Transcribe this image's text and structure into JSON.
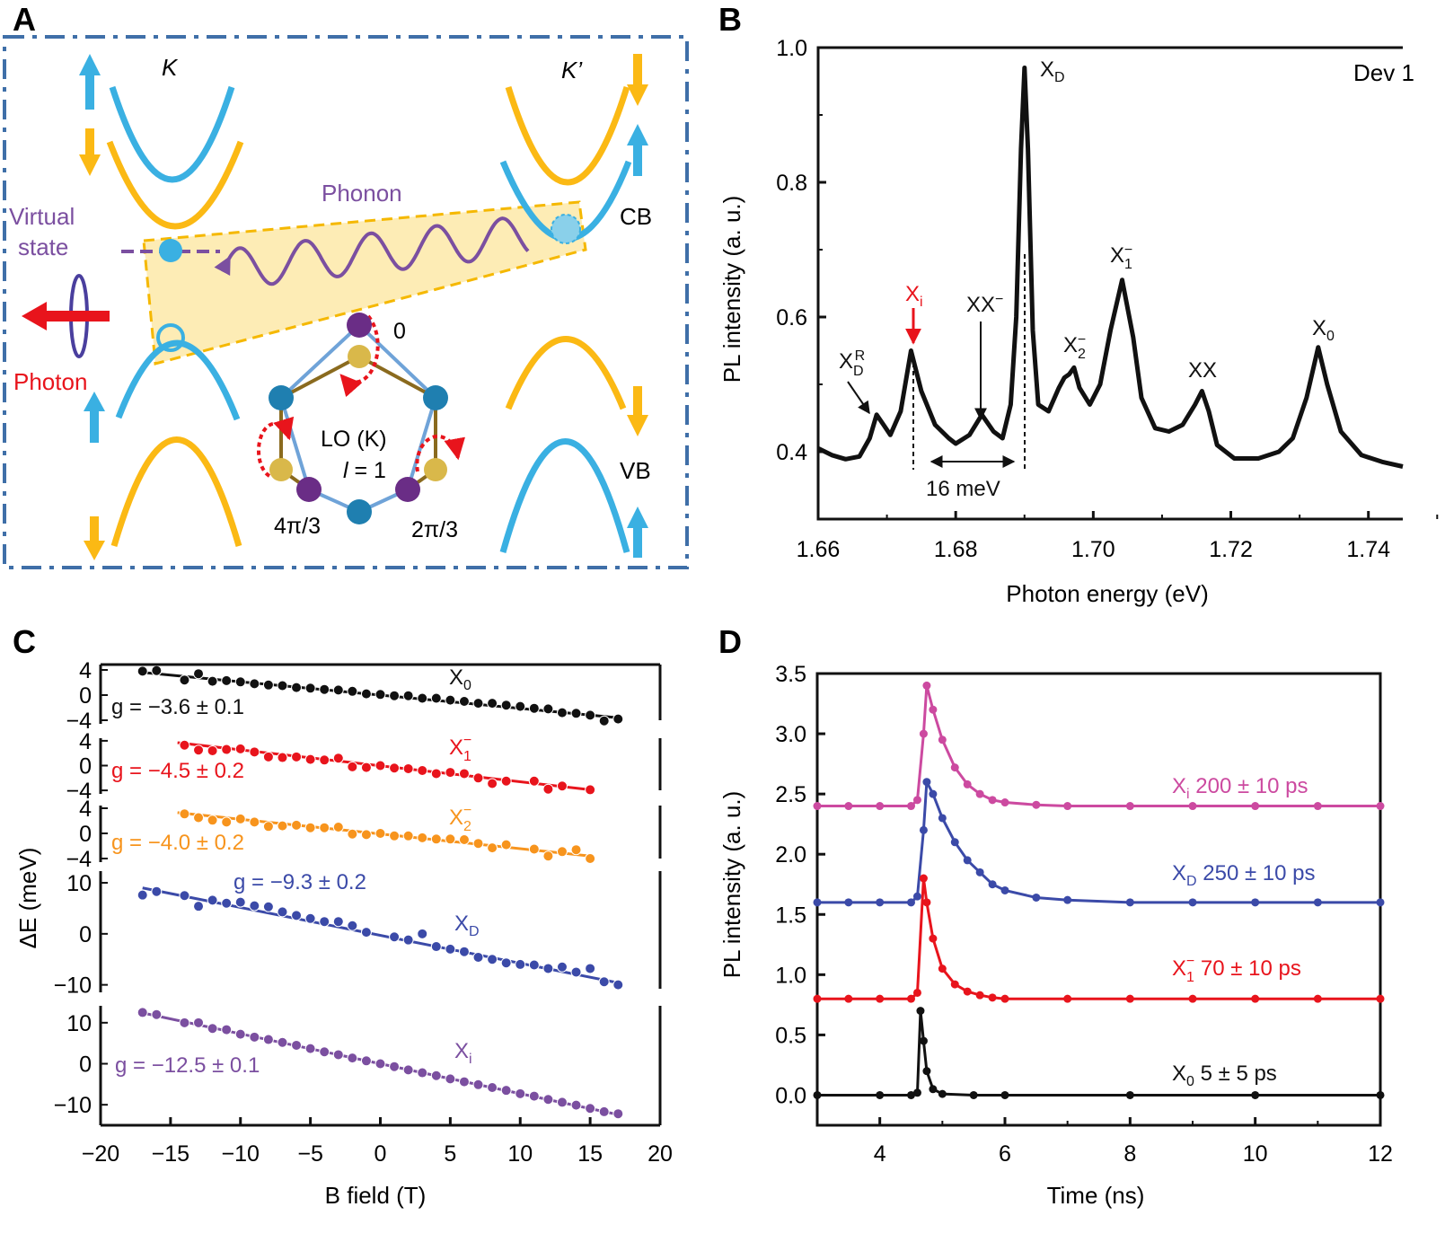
{
  "panels": {
    "a": "A",
    "b": "B",
    "c": "C",
    "d": "D"
  },
  "colors": {
    "black": "#111111",
    "red": "#e8141c",
    "orange": "#f7941d",
    "blue": "#3b4aa8",
    "purple": "#7b4fa0",
    "magenta": "#cc4aa0",
    "cyan": "#3ab0e2",
    "yellow": "#fbb914",
    "frame": "#3f6fa8",
    "gold": "#d9b84a",
    "brown": "#8a6a1e",
    "teal": "#1f7fb0",
    "violet": "#6a2d86"
  },
  "diagram": {
    "valley_k": "K",
    "valley_kprime": "K’",
    "phonon": "Phonon",
    "virtual_state_line1": "Virtual",
    "virtual_state_line2": "state",
    "cb": "CB",
    "vb": "VB",
    "photon": "Photon",
    "phase_0": "0",
    "mode_line1": "LO (K)",
    "mode_l": "l",
    "mode_line2_rest": " = 1",
    "phase_4pi3": "4π/3",
    "phase_2pi3": "2π/3"
  },
  "chart_data": [
    {
      "panel": "B",
      "type": "line",
      "xlabel": "Photon energy (eV)",
      "ylabel": "PL intensity (a. u.)",
      "xlim": [
        1.66,
        1.745
      ],
      "ylim": [
        0.3,
        1.0
      ],
      "xticks": [
        "1.66",
        "1.68",
        "1.70",
        "1.72",
        "1.74"
      ],
      "yticks": [
        "0.4",
        "0.6",
        "0.8",
        "1.0"
      ],
      "grid": false,
      "legend_text": "Dev 1",
      "points": [
        [
          1.66,
          0.405
        ],
        [
          1.662,
          0.395
        ],
        [
          1.664,
          0.389
        ],
        [
          1.666,
          0.393
        ],
        [
          1.6675,
          0.42
        ],
        [
          1.6685,
          0.455
        ],
        [
          1.6695,
          0.44
        ],
        [
          1.6705,
          0.425
        ],
        [
          1.672,
          0.46
        ],
        [
          1.6735,
          0.55
        ],
        [
          1.675,
          0.49
        ],
        [
          1.677,
          0.44
        ],
        [
          1.679,
          0.42
        ],
        [
          1.68,
          0.412
        ],
        [
          1.682,
          0.425
        ],
        [
          1.6838,
          0.455
        ],
        [
          1.6855,
          0.43
        ],
        [
          1.6868,
          0.42
        ],
        [
          1.688,
          0.47
        ],
        [
          1.6888,
          0.6
        ],
        [
          1.6895,
          0.85
        ],
        [
          1.69,
          0.97
        ],
        [
          1.6905,
          0.85
        ],
        [
          1.6912,
          0.58
        ],
        [
          1.692,
          0.47
        ],
        [
          1.6935,
          0.46
        ],
        [
          1.695,
          0.495
        ],
        [
          1.6958,
          0.51
        ],
        [
          1.6965,
          0.515
        ],
        [
          1.6972,
          0.525
        ],
        [
          1.698,
          0.495
        ],
        [
          1.6995,
          0.47
        ],
        [
          1.701,
          0.5
        ],
        [
          1.7025,
          0.58
        ],
        [
          1.7042,
          0.655
        ],
        [
          1.7058,
          0.57
        ],
        [
          1.707,
          0.48
        ],
        [
          1.709,
          0.435
        ],
        [
          1.711,
          0.43
        ],
        [
          1.713,
          0.44
        ],
        [
          1.7148,
          0.47
        ],
        [
          1.7158,
          0.49
        ],
        [
          1.7168,
          0.46
        ],
        [
          1.718,
          0.41
        ],
        [
          1.7205,
          0.39
        ],
        [
          1.724,
          0.39
        ],
        [
          1.727,
          0.4
        ],
        [
          1.729,
          0.42
        ],
        [
          1.731,
          0.48
        ],
        [
          1.7327,
          0.555
        ],
        [
          1.734,
          0.5
        ],
        [
          1.736,
          0.43
        ],
        [
          1.739,
          0.395
        ],
        [
          1.742,
          0.385
        ],
        [
          1.745,
          0.378
        ]
      ],
      "annotations": {
        "xdr": {
          "main": "X",
          "sub": "D",
          "sup": "R"
        },
        "xi": {
          "main": "X",
          "sub": "i"
        },
        "xxm": {
          "main": "XX",
          "sup": "−"
        },
        "xd": {
          "main": "X",
          "sub": "D"
        },
        "x2m": {
          "main": "X",
          "sub": "2",
          "sup": "−"
        },
        "x1m": {
          "main": "X",
          "sub": "1",
          "sup": "−"
        },
        "xx": {
          "main": "XX"
        },
        "x0": {
          "main": "X",
          "sub": "0"
        },
        "spacing": "16 meV"
      }
    },
    {
      "panel": "C",
      "type": "scatter",
      "xlabel": "B field (T)",
      "ylabel": "ΔE (meV)",
      "xlim": [
        -20,
        20
      ],
      "xticks": [
        "−20",
        "−15",
        "−10",
        "−5",
        "0",
        "5",
        "10",
        "15",
        "20"
      ],
      "grid": false,
      "series": [
        {
          "name": "X0",
          "label": {
            "main": "X",
            "sub": "0"
          },
          "g": "g = −3.6 ± 0.1",
          "color": "#111111",
          "ylim": [
            -5,
            5
          ],
          "yticks": [
            "4",
            "0",
            "−4"
          ],
          "x": [
            -17,
            -16,
            -14,
            -13,
            -12,
            -11,
            -10,
            -9,
            -8,
            -7,
            -6,
            -5,
            -4,
            -3,
            -2,
            -1,
            0,
            1,
            2,
            3,
            4,
            5,
            6,
            7,
            8,
            9,
            10,
            11,
            12,
            13,
            14,
            15,
            16,
            17
          ],
          "y": [
            3.8,
            3.9,
            2.4,
            3.4,
            2.2,
            2.3,
            2.1,
            1.8,
            1.6,
            1.5,
            1.2,
            1.1,
            0.9,
            0.8,
            0.6,
            0.2,
            0.1,
            -0.1,
            -0.1,
            -0.5,
            -0.5,
            -0.8,
            -1.0,
            -1.3,
            -1.3,
            -1.6,
            -1.8,
            -2.1,
            -2.2,
            -2.8,
            -2.9,
            -3.2,
            -4.1,
            -3.8
          ],
          "fit": [
            [
              -17,
              3.6
            ],
            [
              17,
              -3.6
            ]
          ]
        },
        {
          "name": "X1-",
          "label": {
            "main": "X",
            "sub": "1",
            "sup": "−"
          },
          "g": "g = −4.5 ± 0.2",
          "color": "#e8141c",
          "ylim": [
            -5,
            5
          ],
          "yticks": [
            "4",
            "0",
            "−4"
          ],
          "x": [
            -14,
            -13,
            -12,
            -11,
            -10,
            -9,
            -8,
            -7,
            -6,
            -5,
            -4,
            -3,
            -2,
            -1,
            0,
            1,
            2,
            3,
            4,
            5,
            6,
            7,
            8,
            9,
            11,
            12,
            13,
            15
          ],
          "y": [
            3.3,
            2.5,
            2.4,
            2.6,
            2.7,
            2.2,
            1.4,
            1.3,
            1.4,
            1.0,
            0.9,
            1.2,
            -0.2,
            -0.3,
            0.0,
            -0.4,
            -0.5,
            -0.8,
            -1.3,
            -1.1,
            -1.3,
            -2.0,
            -2.9,
            -2.5,
            -2.5,
            -3.8,
            -3.3,
            -3.9
          ],
          "fit": [
            [
              -14.5,
              3.7
            ],
            [
              15,
              -3.9
            ]
          ]
        },
        {
          "name": "X2-",
          "label": {
            "main": "X",
            "sub": "2",
            "sup": "−"
          },
          "g": "g = −4.0 ± 0.2",
          "color": "#f7941d",
          "ylim": [
            -5,
            5
          ],
          "yticks": [
            "4",
            "0",
            "−4"
          ],
          "x": [
            -14,
            -13,
            -12,
            -11,
            -10,
            -9,
            -8,
            -7,
            -6,
            -5,
            -4,
            -3,
            -2,
            -1,
            0,
            1,
            2,
            3,
            4,
            5,
            6,
            7,
            8,
            9,
            11,
            12,
            13,
            14,
            15
          ],
          "y": [
            3.1,
            2.5,
            2.1,
            1.8,
            2.3,
            1.8,
            1.1,
            1.2,
            1.3,
            0.9,
            0.9,
            1.0,
            -0.1,
            -0.2,
            0.0,
            -0.4,
            -0.4,
            -0.7,
            -0.9,
            -0.9,
            -1.0,
            -1.6,
            -2.3,
            -1.8,
            -2.5,
            -3.6,
            -2.9,
            -2.6,
            -4.0
          ],
          "fit": [
            [
              -14.5,
              3.3
            ],
            [
              15,
              -3.6
            ]
          ]
        },
        {
          "name": "XD",
          "label": {
            "main": "X",
            "sub": "D"
          },
          "g": "g = −9.3 ± 0.2",
          "color": "#3b4aa8",
          "ylim": [
            -12,
            13
          ],
          "yticks": [
            "10",
            "0",
            "−10"
          ],
          "x": [
            -17,
            -16,
            -14,
            -13,
            -12,
            -11,
            -10,
            -9,
            -8,
            -7,
            -6,
            -5,
            -4,
            -3,
            -2,
            -1,
            1,
            2,
            3,
            4,
            5,
            6,
            7,
            8,
            9,
            10,
            11,
            12,
            13,
            14,
            15,
            16,
            17
          ],
          "y": [
            7.6,
            8.3,
            7.5,
            5.4,
            6.6,
            6.0,
            6.2,
            5.5,
            5.3,
            4.3,
            3.6,
            3.0,
            2.4,
            2.4,
            1.6,
            0.3,
            -0.6,
            -1.2,
            0.0,
            -2.5,
            -3.0,
            -3.5,
            -4.6,
            -5.0,
            -5.7,
            -6.0,
            -6.1,
            -6.8,
            -6.5,
            -7.5,
            -6.8,
            -9.4,
            -10.0
          ],
          "fit": [
            [
              -17,
              9.0
            ],
            [
              17,
              -9.6
            ]
          ]
        },
        {
          "name": "Xi",
          "label": {
            "main": "X",
            "sub": "i"
          },
          "g": "g = −12.5 ± 0.1",
          "color": "#7b4fa0",
          "ylim": [
            -15,
            15
          ],
          "yticks": [
            "10",
            "0",
            "−10"
          ],
          "x": [
            -17,
            -16,
            -14,
            -13,
            -12,
            -11,
            -10,
            -9,
            -8,
            -7,
            -6,
            -5,
            -4,
            -3,
            -2,
            -1,
            0,
            1,
            2,
            3,
            4,
            5,
            6,
            7,
            8,
            9,
            10,
            11,
            12,
            13,
            14,
            15,
            16,
            17
          ],
          "y": [
            12.5,
            12.0,
            10.0,
            10.0,
            8.6,
            8.3,
            7.2,
            6.5,
            5.9,
            5.2,
            4.5,
            3.7,
            2.9,
            2.2,
            1.4,
            0.7,
            0.0,
            -0.7,
            -1.5,
            -2.2,
            -2.9,
            -3.7,
            -4.4,
            -5.1,
            -5.8,
            -6.5,
            -7.3,
            -7.9,
            -8.7,
            -9.4,
            -10.1,
            -10.9,
            -11.7,
            -12.2
          ],
          "fit": [
            [
              -17,
              12.4
            ],
            [
              17,
              -12.4
            ]
          ]
        }
      ]
    },
    {
      "panel": "D",
      "type": "scatter",
      "xlabel": "Time (ns)",
      "ylabel": "PL intensity (a. u.)",
      "xlim": [
        3,
        12
      ],
      "ylim": [
        -0.25,
        3.5
      ],
      "xticks": [
        "4",
        "6",
        "8",
        "10",
        "12"
      ],
      "yticks": [
        "0.0",
        "0.5",
        "1.0",
        "1.5",
        "2.0",
        "2.5",
        "3.0",
        "3.5"
      ],
      "grid": false,
      "series": [
        {
          "name": "Xi",
          "label": {
            "main": "X",
            "sub": "i",
            "rest": " 200 ± 10 ps"
          },
          "color": "#cc4aa0",
          "x": [
            3,
            3.5,
            4,
            4.5,
            4.6,
            4.7,
            4.75,
            4.85,
            5.0,
            5.2,
            5.4,
            5.6,
            5.8,
            6.0,
            6.5,
            7,
            8,
            9,
            10,
            11,
            12
          ],
          "y": [
            2.4,
            2.4,
            2.4,
            2.4,
            2.45,
            3.0,
            3.4,
            3.2,
            2.95,
            2.72,
            2.58,
            2.5,
            2.45,
            2.43,
            2.41,
            2.4,
            2.4,
            2.4,
            2.4,
            2.4,
            2.4
          ]
        },
        {
          "name": "XD",
          "label": {
            "main": "X",
            "sub": "D",
            "rest": " 250 ± 10 ps"
          },
          "color": "#3b4aa8",
          "x": [
            3,
            3.5,
            4,
            4.5,
            4.6,
            4.7,
            4.75,
            4.85,
            5.0,
            5.2,
            5.4,
            5.6,
            5.8,
            6.0,
            6.5,
            7,
            8,
            9,
            10,
            11,
            12
          ],
          "y": [
            1.6,
            1.6,
            1.6,
            1.6,
            1.65,
            2.2,
            2.6,
            2.5,
            2.3,
            2.1,
            1.95,
            1.85,
            1.75,
            1.7,
            1.64,
            1.62,
            1.6,
            1.6,
            1.6,
            1.6,
            1.6
          ]
        },
        {
          "name": "X1-",
          "label": {
            "main": "X",
            "sub": "1",
            "sup": "−",
            "rest": "  70 ± 10 ps"
          },
          "color": "#e8141c",
          "x": [
            3,
            3.5,
            4,
            4.5,
            4.6,
            4.7,
            4.75,
            4.85,
            5.0,
            5.2,
            5.4,
            5.6,
            5.8,
            6.0,
            7,
            8,
            9,
            10,
            11,
            12
          ],
          "y": [
            0.8,
            0.8,
            0.8,
            0.8,
            0.85,
            1.8,
            1.6,
            1.3,
            1.05,
            0.92,
            0.86,
            0.83,
            0.81,
            0.8,
            0.8,
            0.8,
            0.8,
            0.8,
            0.8,
            0.8
          ]
        },
        {
          "name": "X0",
          "label": {
            "main": "X",
            "sub": "0",
            "rest": " 5 ± 5 ps"
          },
          "color": "#111111",
          "x": [
            3,
            4,
            4.5,
            4.6,
            4.65,
            4.7,
            4.75,
            4.85,
            5.0,
            5.5,
            6,
            8,
            10,
            12
          ],
          "y": [
            0,
            0,
            0,
            0.02,
            0.7,
            0.45,
            0.2,
            0.05,
            0.01,
            0,
            0,
            0,
            0,
            0
          ]
        }
      ]
    }
  ]
}
